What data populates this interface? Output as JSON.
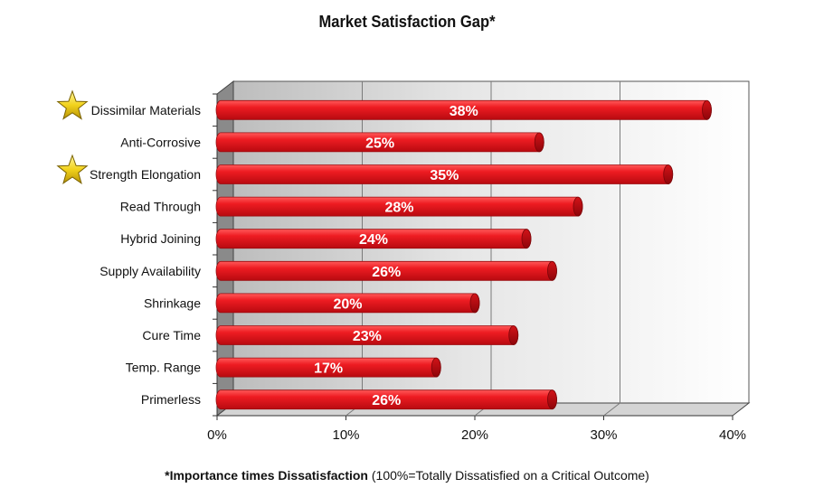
{
  "chart_data": {
    "type": "bar",
    "orientation": "horizontal",
    "title": "Market Satisfaction Gap*",
    "categories": [
      "Dissimilar Materials",
      "Anti-Corrosive",
      "Strength Elongation",
      "Read Through",
      "Hybrid Joining",
      "Supply Availability",
      "Shrinkage",
      "Cure Time",
      "Temp. Range",
      "Primerless"
    ],
    "values": [
      38,
      25,
      35,
      28,
      24,
      26,
      20,
      23,
      17,
      26
    ],
    "data_labels": [
      "38%",
      "25%",
      "35%",
      "28%",
      "24%",
      "26%",
      "20%",
      "23%",
      "17%",
      "26%"
    ],
    "starred": [
      true,
      false,
      true,
      false,
      false,
      false,
      false,
      false,
      false,
      false
    ],
    "xlim": [
      0,
      40
    ],
    "xticks": [
      0,
      10,
      20,
      30,
      40
    ],
    "xtick_labels": [
      "0%",
      "10%",
      "20%",
      "30%",
      "40%"
    ],
    "grid": true,
    "bar_color": "#e0141b",
    "footnote": {
      "bold": "*Importance times Dissatisfaction",
      "normal": " (100%=Totally  Dissatisfied  on a Critical Outcome)"
    }
  }
}
